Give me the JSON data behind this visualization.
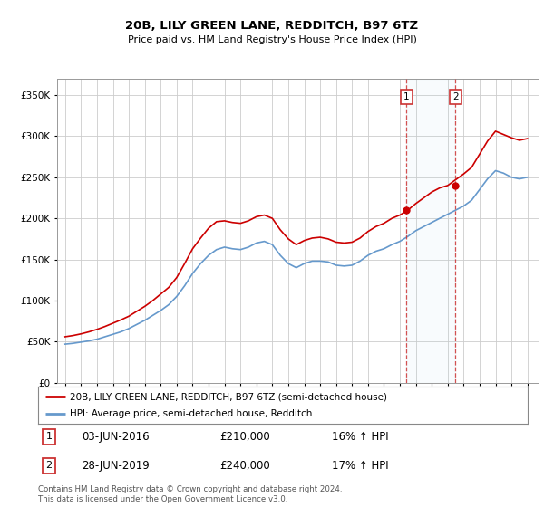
{
  "title": "20B, LILY GREEN LANE, REDDITCH, B97 6TZ",
  "subtitle": "Price paid vs. HM Land Registry's House Price Index (HPI)",
  "red_label": "20B, LILY GREEN LANE, REDDITCH, B97 6TZ (semi-detached house)",
  "blue_label": "HPI: Average price, semi-detached house, Redditch",
  "legend_entries": [
    {
      "num": "1",
      "date": "03-JUN-2016",
      "price": "£210,000",
      "hpi": "16% ↑ HPI"
    },
    {
      "num": "2",
      "date": "28-JUN-2019",
      "price": "£240,000",
      "hpi": "17% ↑ HPI"
    }
  ],
  "footer": "Contains HM Land Registry data © Crown copyright and database right 2024.\nThis data is licensed under the Open Government Licence v3.0.",
  "sale1_year": 2016.42,
  "sale1_price": 210000,
  "sale2_year": 2019.49,
  "sale2_price": 240000,
  "ylim": [
    0,
    370000
  ],
  "xlim_min": 1994.5,
  "xlim_max": 2024.7,
  "red_color": "#cc0000",
  "blue_color": "#6699cc",
  "vline_color": "#cc3333",
  "background_color": "#ffffff",
  "grid_color": "#cccccc",
  "hpi_years": [
    1995.0,
    1995.5,
    1996.0,
    1996.5,
    1997.0,
    1997.5,
    1998.0,
    1998.5,
    1999.0,
    1999.5,
    2000.0,
    2000.5,
    2001.0,
    2001.5,
    2002.0,
    2002.5,
    2003.0,
    2003.5,
    2004.0,
    2004.5,
    2005.0,
    2005.5,
    2006.0,
    2006.5,
    2007.0,
    2007.5,
    2008.0,
    2008.5,
    2009.0,
    2009.5,
    2010.0,
    2010.5,
    2011.0,
    2011.5,
    2012.0,
    2012.5,
    2013.0,
    2013.5,
    2014.0,
    2014.5,
    2015.0,
    2015.5,
    2016.0,
    2016.5,
    2017.0,
    2017.5,
    2018.0,
    2018.5,
    2019.0,
    2019.5,
    2020.0,
    2020.5,
    2021.0,
    2021.5,
    2022.0,
    2022.5,
    2023.0,
    2023.5,
    2024.0
  ],
  "hpi_values": [
    47000,
    48000,
    49500,
    51000,
    53000,
    56000,
    59000,
    62000,
    66000,
    71000,
    76000,
    82000,
    88000,
    95000,
    105000,
    118000,
    133000,
    145000,
    155000,
    162000,
    165000,
    163000,
    162000,
    165000,
    170000,
    172000,
    168000,
    155000,
    145000,
    140000,
    145000,
    148000,
    148000,
    147000,
    143000,
    142000,
    143000,
    148000,
    155000,
    160000,
    163000,
    168000,
    172000,
    178000,
    185000,
    190000,
    195000,
    200000,
    205000,
    210000,
    215000,
    222000,
    235000,
    248000,
    258000,
    255000,
    250000,
    248000,
    250000
  ],
  "red_years": [
    1995.0,
    1995.5,
    1996.0,
    1996.5,
    1997.0,
    1997.5,
    1998.0,
    1998.5,
    1999.0,
    1999.5,
    2000.0,
    2000.5,
    2001.0,
    2001.5,
    2002.0,
    2002.5,
    2003.0,
    2003.5,
    2004.0,
    2004.5,
    2005.0,
    2005.5,
    2006.0,
    2006.5,
    2007.0,
    2007.5,
    2008.0,
    2008.5,
    2009.0,
    2009.5,
    2010.0,
    2010.5,
    2011.0,
    2011.5,
    2012.0,
    2012.5,
    2013.0,
    2013.5,
    2014.0,
    2014.5,
    2015.0,
    2015.5,
    2016.0,
    2016.5,
    2017.0,
    2017.5,
    2018.0,
    2018.5,
    2019.0,
    2019.5,
    2020.0,
    2020.5,
    2021.0,
    2021.5,
    2022.0,
    2022.5,
    2023.0,
    2023.5,
    2024.0
  ],
  "red_values": [
    56000,
    57500,
    59500,
    62000,
    65000,
    68500,
    72500,
    76500,
    81000,
    87000,
    93000,
    100000,
    108000,
    116000,
    128000,
    145000,
    163000,
    176000,
    188000,
    196000,
    197000,
    195000,
    194000,
    197000,
    202000,
    204000,
    200000,
    186000,
    175000,
    168000,
    173000,
    176000,
    177000,
    175000,
    171000,
    170000,
    171000,
    176000,
    184000,
    190000,
    194000,
    200000,
    204000,
    210000,
    218000,
    225000,
    232000,
    237000,
    240000,
    247000,
    254000,
    262000,
    278000,
    294000,
    306000,
    302000,
    298000,
    295000,
    297000
  ]
}
